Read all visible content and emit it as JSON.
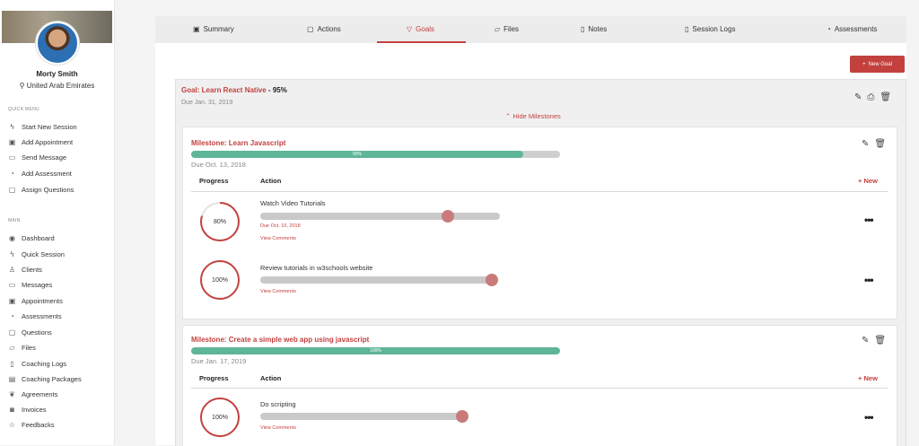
{
  "user": {
    "name": "Morty Smith",
    "location": "United Arab Emirates"
  },
  "quick_menu": {
    "title": "QUICK MENU",
    "items": [
      {
        "label": "Start New Session",
        "icon": "bolt-icon",
        "glyph": "ϟ"
      },
      {
        "label": "Add Appointment",
        "icon": "calendar-icon",
        "glyph": "▣"
      },
      {
        "label": "Send Message",
        "icon": "message-icon",
        "glyph": "▭"
      },
      {
        "label": "Add Assessment",
        "icon": "assessment-icon",
        "glyph": "◔"
      },
      {
        "label": "Assign Questions",
        "icon": "question-icon",
        "glyph": "▢"
      }
    ]
  },
  "main_menu": {
    "title": "MAIN",
    "items": [
      {
        "label": "Dashboard",
        "icon": "dashboard-icon",
        "glyph": "◉"
      },
      {
        "label": "Quick Session",
        "icon": "bolt-icon",
        "glyph": "ϟ"
      },
      {
        "label": "Clients",
        "icon": "users-icon",
        "glyph": "♙"
      },
      {
        "label": "Messages",
        "icon": "message-icon",
        "glyph": "▭"
      },
      {
        "label": "Appointments",
        "icon": "calendar-icon",
        "glyph": "▣"
      },
      {
        "label": "Assessments",
        "icon": "assessment-icon",
        "glyph": "◔"
      },
      {
        "label": "Questions",
        "icon": "question-icon",
        "glyph": "▢"
      },
      {
        "label": "Files",
        "icon": "folder-icon",
        "glyph": "▱"
      },
      {
        "label": "Coaching Logs",
        "icon": "log-icon",
        "glyph": "▯"
      },
      {
        "label": "Coaching Packages",
        "icon": "package-icon",
        "glyph": "▤"
      },
      {
        "label": "Agreements",
        "icon": "handshake-icon",
        "glyph": "❦"
      },
      {
        "label": "Invoices",
        "icon": "invoice-icon",
        "glyph": "◙"
      },
      {
        "label": "Feedbacks",
        "icon": "star-icon",
        "glyph": "☆"
      }
    ]
  },
  "tabs": [
    {
      "label": "Summary",
      "icon": "summary-icon",
      "glyph": "▣",
      "active": false
    },
    {
      "label": "Actions",
      "icon": "actions-icon",
      "glyph": "▢",
      "active": false
    },
    {
      "label": "Goals",
      "icon": "goals-icon",
      "glyph": "▽",
      "active": true
    },
    {
      "label": "Files",
      "icon": "folder-icon",
      "glyph": "▱",
      "active": false
    },
    {
      "label": "Notes",
      "icon": "note-icon",
      "glyph": "▯",
      "active": false
    },
    {
      "label": "Session Logs",
      "icon": "log-icon",
      "glyph": "▯",
      "active": false
    },
    {
      "label": "Assessments",
      "icon": "assessment-icon",
      "glyph": "◔",
      "active": false
    }
  ],
  "new_goal_label": "New Goal",
  "goal": {
    "title": "Goal: Learn React Native",
    "sep": " - ",
    "progress_text": "95%",
    "due": "Due Jan. 31, 2019",
    "hide_milestones": "Hide Milestones"
  },
  "milestones": [
    {
      "title": "Milestone: Learn Javascript",
      "progress": 0.9,
      "progress_label": "90%",
      "due": "Due Oct. 13, 2018",
      "col_progress": "Progress",
      "col_action": "Action",
      "new_label": "New",
      "actions": [
        {
          "name": "Watch Video Tutorials",
          "progress": 0.8,
          "progress_label": "80%",
          "due": "Due Oct. 10, 2018",
          "view_comments": "View Comments"
        },
        {
          "name": "Review tutorials in w3schools website",
          "progress": 1.0,
          "progress_label": "100%",
          "view_comments": "View Comments"
        }
      ]
    },
    {
      "title": "Milestone: Create a simple web app using javascript",
      "progress": 1.0,
      "progress_label": "100%",
      "due": "Due Jan. 17, 2019",
      "col_progress": "Progress",
      "col_action": "Action",
      "new_label": "New",
      "actions": [
        {
          "name": "Do scripting",
          "progress": 1.0,
          "progress_label": "100%",
          "view_comments": "View Comments"
        }
      ]
    }
  ],
  "colors": {
    "accent": "#c2413f",
    "progress_fill": "#5fb597",
    "track": "#cfcfcf",
    "knob": "#c97b7b"
  }
}
